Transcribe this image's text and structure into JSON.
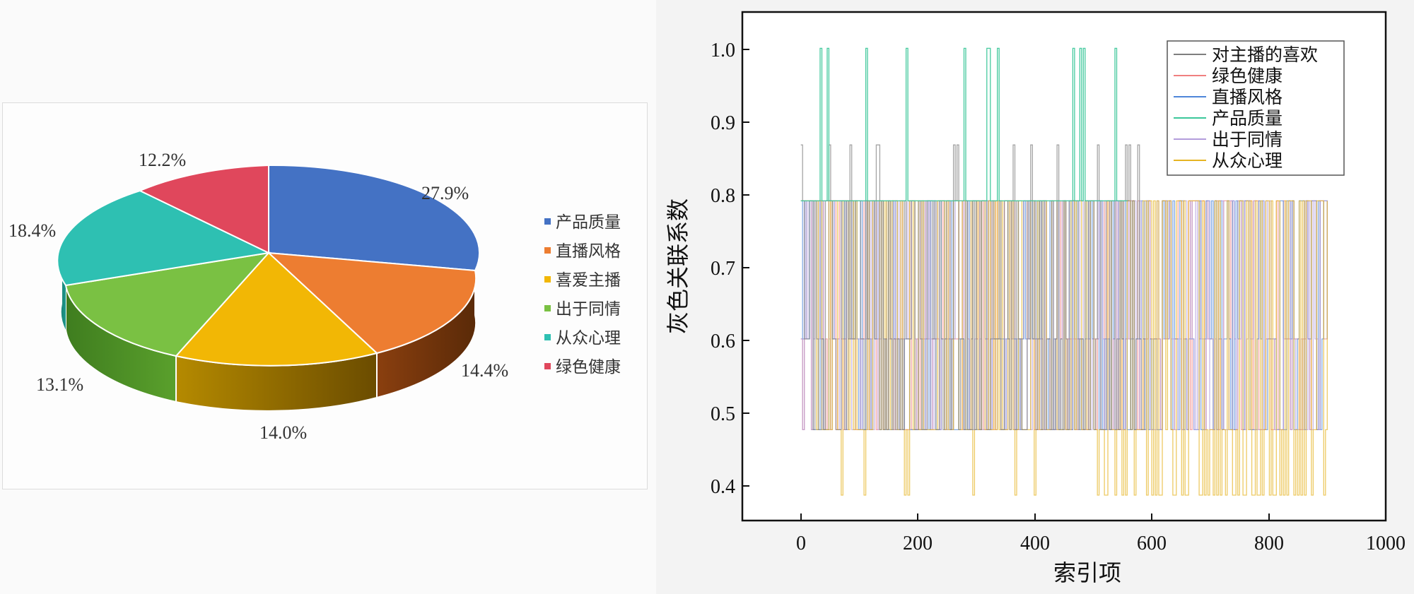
{
  "chart_data": [
    {
      "type": "pie",
      "style": "3d",
      "slices": [
        {
          "label": "产品质量",
          "value": 27.9,
          "value_text": "27.9%",
          "color": "#4472C4"
        },
        {
          "label": "直播风格",
          "value": 14.4,
          "value_text": "14.4%",
          "color": "#ED7D31"
        },
        {
          "label": "喜爱主播",
          "value": 14.0,
          "value_text": "14.0%",
          "color": "#F2B705"
        },
        {
          "label": "出于同情",
          "value": 13.1,
          "value_text": "13.1%",
          "color": "#7AC143"
        },
        {
          "label": "从众心理",
          "value": 18.4,
          "value_text": "18.4%",
          "color": "#2EC0B2"
        },
        {
          "label": "绿色健康",
          "value": 12.2,
          "value_text": "12.2%",
          "color": "#E0475C"
        }
      ],
      "legend_position": "right"
    },
    {
      "type": "line",
      "xlabel": "索引项",
      "ylabel": "灰色关联系数",
      "xlim": [
        -100,
        1000
      ],
      "ylim": [
        0.35,
        1.05
      ],
      "xticks": [
        "0",
        "200",
        "400",
        "600",
        "800",
        "1000"
      ],
      "yticks": [
        "0.4",
        "0.5",
        "0.6",
        "0.7",
        "0.8",
        "0.9",
        "1.0"
      ],
      "legend_position": "top-right",
      "series": [
        {
          "name": "对主播的喜欢",
          "color": "#7f7f7f",
          "x_range": [
            0,
            590
          ],
          "levels": [
            0.475,
            0.6,
            0.79,
            0.867
          ]
        },
        {
          "name": "绿色健康",
          "color": "#f08080",
          "x_range": [
            0,
            900
          ],
          "levels": [
            0.475,
            0.6,
            0.79
          ]
        },
        {
          "name": "直播风格",
          "color": "#4f86d9",
          "x_range": [
            0,
            900
          ],
          "levels": [
            0.475,
            0.6,
            0.79
          ]
        },
        {
          "name": "产品质量",
          "color": "#3cc79a",
          "x_range": [
            0,
            560
          ],
          "levels": [
            0.79,
            1.0
          ]
        },
        {
          "name": "出于同情",
          "color": "#b39ddb",
          "x_range": [
            0,
            900
          ],
          "levels": [
            0.475,
            0.6,
            0.79
          ]
        },
        {
          "name": "从众心理",
          "color": "#e6b422",
          "x_range": [
            0,
            900
          ],
          "levels": [
            0.385,
            0.475,
            0.79
          ]
        }
      ]
    }
  ]
}
